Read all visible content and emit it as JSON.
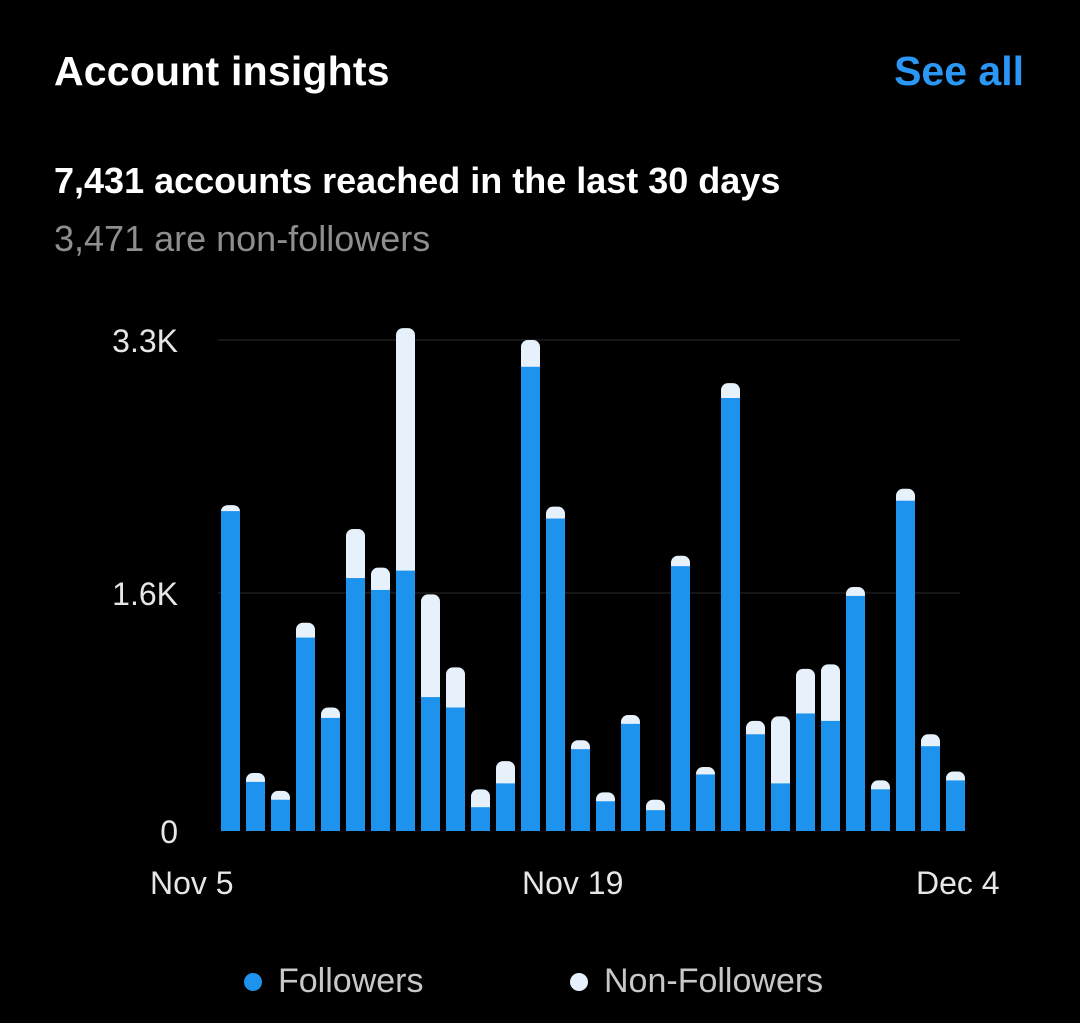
{
  "header": {
    "title": "Account insights",
    "see_all_label": "See all"
  },
  "summary": {
    "reached": "7,431 accounts reached in the last 30 days",
    "non_followers": "3,471 are non-followers"
  },
  "colors": {
    "followers": "#1d93ee",
    "non_followers": "#e6f1fb",
    "link": "#2b97f4",
    "grid": "#2a2a2a",
    "muted_text": "#8e8e8e"
  },
  "legend": [
    {
      "label": "Followers",
      "color": "#1d93ee"
    },
    {
      "label": "Non-Followers",
      "color": "#e6f1fb"
    }
  ],
  "chart_data": {
    "type": "bar",
    "stacked": true,
    "title": "",
    "xlabel": "",
    "ylabel": "",
    "ylim": [
      0,
      3300
    ],
    "y_ticks": [
      {
        "label": "3.3K",
        "value": 3300
      },
      {
        "label": "1.6K",
        "value": 1600
      },
      {
        "label": "0",
        "value": 0
      }
    ],
    "x_tick_labels": [
      {
        "label": "Nov 5",
        "index": 0
      },
      {
        "label": "Nov 19",
        "index": 14
      },
      {
        "label": "Dec 4",
        "index": 29
      }
    ],
    "grid": true,
    "legend_position": "bottom",
    "categories": [
      "Nov 5",
      "Nov 6",
      "Nov 7",
      "Nov 8",
      "Nov 9",
      "Nov 10",
      "Nov 11",
      "Nov 12",
      "Nov 13",
      "Nov 14",
      "Nov 15",
      "Nov 16",
      "Nov 17",
      "Nov 18",
      "Nov 19",
      "Nov 20",
      "Nov 21",
      "Nov 22",
      "Nov 23",
      "Nov 24",
      "Nov 25",
      "Nov 26",
      "Nov 27",
      "Nov 28",
      "Nov 29",
      "Nov 30",
      "Dec 1",
      "Dec 2",
      "Dec 3",
      "Dec 4"
    ],
    "series": [
      {
        "name": "Followers",
        "color": "#1d93ee",
        "values": [
          2150,
          330,
          210,
          1300,
          760,
          1700,
          1620,
          1750,
          900,
          830,
          160,
          320,
          3120,
          2100,
          550,
          200,
          720,
          140,
          1780,
          380,
          2910,
          650,
          320,
          790,
          740,
          1580,
          280,
          2220,
          570,
          340
        ]
      },
      {
        "name": "Non-Followers",
        "color": "#e6f1fb",
        "values": [
          40,
          60,
          60,
          100,
          70,
          330,
          150,
          1630,
          690,
          270,
          120,
          150,
          180,
          80,
          60,
          60,
          60,
          70,
          70,
          50,
          100,
          90,
          450,
          300,
          380,
          60,
          60,
          80,
          80,
          60
        ]
      }
    ]
  }
}
